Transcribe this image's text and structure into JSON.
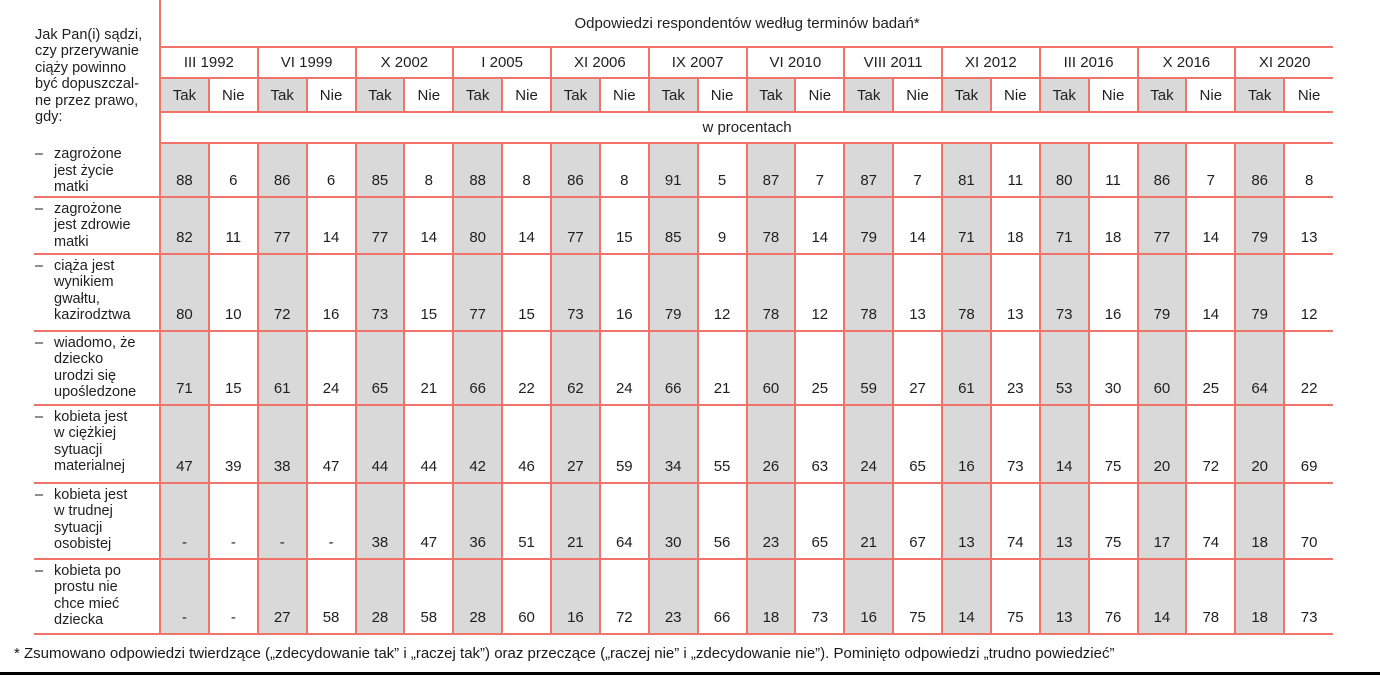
{
  "table": {
    "stub_header": "Jak Pan(i) sądzi,\nczy przerywanie\nciąży powinno\nbyć dopuszczal-\nne przez prawo,\ngdy:",
    "main_header": "Odpowiedzi respondentów według terminów badań*",
    "unit_row": "w procentach",
    "answer_labels": {
      "yes": "Tak",
      "no": "Nie"
    },
    "dash": "–",
    "surveys": [
      "III 1992",
      "VI 1999",
      "X 2002",
      "I 2005",
      "XI 2006",
      "IX 2007",
      "VI 2010",
      "VIII 2011",
      "XI 2012",
      "III 2016",
      "X 2016",
      "XI 2020"
    ],
    "rows": [
      {
        "label": "zagrożone\njest życie\nmatki",
        "values": [
          [
            "88",
            "6"
          ],
          [
            "86",
            "6"
          ],
          [
            "85",
            "8"
          ],
          [
            "88",
            "8"
          ],
          [
            "86",
            "8"
          ],
          [
            "91",
            "5"
          ],
          [
            "87",
            "7"
          ],
          [
            "87",
            "7"
          ],
          [
            "81",
            "11"
          ],
          [
            "80",
            "11"
          ],
          [
            "86",
            "7"
          ],
          [
            "86",
            "8"
          ]
        ]
      },
      {
        "label": "zagrożone\njest zdrowie\nmatki",
        "values": [
          [
            "82",
            "11"
          ],
          [
            "77",
            "14"
          ],
          [
            "77",
            "14"
          ],
          [
            "80",
            "14"
          ],
          [
            "77",
            "15"
          ],
          [
            "85",
            "9"
          ],
          [
            "78",
            "14"
          ],
          [
            "79",
            "14"
          ],
          [
            "71",
            "18"
          ],
          [
            "71",
            "18"
          ],
          [
            "77",
            "14"
          ],
          [
            "79",
            "13"
          ]
        ]
      },
      {
        "label": "ciąża jest\nwynikiem\ngwałtu,\nkazirodztwa",
        "values": [
          [
            "80",
            "10"
          ],
          [
            "72",
            "16"
          ],
          [
            "73",
            "15"
          ],
          [
            "77",
            "15"
          ],
          [
            "73",
            "16"
          ],
          [
            "79",
            "12"
          ],
          [
            "78",
            "12"
          ],
          [
            "78",
            "13"
          ],
          [
            "78",
            "13"
          ],
          [
            "73",
            "16"
          ],
          [
            "79",
            "14"
          ],
          [
            "79",
            "12"
          ]
        ]
      },
      {
        "label": "wiadomo, że\ndziecko\nurodzi się\nupośledzone",
        "values": [
          [
            "71",
            "15"
          ],
          [
            "61",
            "24"
          ],
          [
            "65",
            "21"
          ],
          [
            "66",
            "22"
          ],
          [
            "62",
            "24"
          ],
          [
            "66",
            "21"
          ],
          [
            "60",
            "25"
          ],
          [
            "59",
            "27"
          ],
          [
            "61",
            "23"
          ],
          [
            "53",
            "30"
          ],
          [
            "60",
            "25"
          ],
          [
            "64",
            "22"
          ]
        ]
      },
      {
        "label": "kobieta jest\nw ciężkiej\nsytuacji\nmaterialnej",
        "values": [
          [
            "47",
            "39"
          ],
          [
            "38",
            "47"
          ],
          [
            "44",
            "44"
          ],
          [
            "42",
            "46"
          ],
          [
            "27",
            "59"
          ],
          [
            "34",
            "55"
          ],
          [
            "26",
            "63"
          ],
          [
            "24",
            "65"
          ],
          [
            "16",
            "73"
          ],
          [
            "14",
            "75"
          ],
          [
            "20",
            "72"
          ],
          [
            "20",
            "69"
          ]
        ]
      },
      {
        "label": "kobieta jest\nw trudnej\nsytuacji\nosobistej",
        "values": [
          [
            "-",
            "-"
          ],
          [
            "-",
            "-"
          ],
          [
            "38",
            "47"
          ],
          [
            "36",
            "51"
          ],
          [
            "21",
            "64"
          ],
          [
            "30",
            "56"
          ],
          [
            "23",
            "65"
          ],
          [
            "21",
            "67"
          ],
          [
            "13",
            "74"
          ],
          [
            "13",
            "75"
          ],
          [
            "17",
            "74"
          ],
          [
            "18",
            "70"
          ]
        ]
      },
      {
        "label": "kobieta po\nprostu nie\nchce mieć\ndziecka",
        "values": [
          [
            "-",
            "-"
          ],
          [
            "27",
            "58"
          ],
          [
            "28",
            "58"
          ],
          [
            "28",
            "60"
          ],
          [
            "16",
            "72"
          ],
          [
            "23",
            "66"
          ],
          [
            "18",
            "73"
          ],
          [
            "16",
            "75"
          ],
          [
            "14",
            "75"
          ],
          [
            "13",
            "76"
          ],
          [
            "14",
            "78"
          ],
          [
            "18",
            "73"
          ]
        ]
      }
    ]
  },
  "footnote": "* Zsumowano odpowiedzi twierdzące („zdecydowanie tak” i „raczej tak”) oraz przeczące („raczej nie” i „zdecydowanie nie”). Pominięto odpowiedzi „trudno powiedzieć”",
  "colors": {
    "border": "#f1746b",
    "tak_fill": "#d9d9d9",
    "text": "#1f1f1f"
  }
}
